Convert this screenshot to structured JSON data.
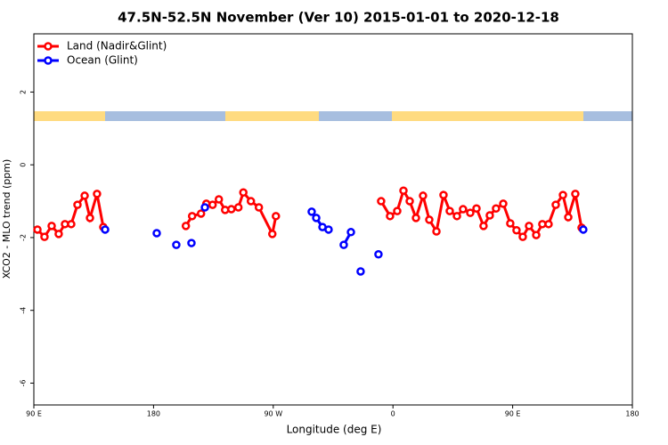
{
  "chart_data": {
    "type": "line",
    "title": "47.5N-52.5N November (Ver 10)   2015-01-01 to 2020-12-18",
    "x_label": "Longitude (deg E)",
    "y_label": "XCO2 - MLO trend (ppm)",
    "xlim": [
      90,
      540
    ],
    "ylim": [
      -6.6,
      3.6
    ],
    "xticks": [
      {
        "value": 90,
        "label": "90 E"
      },
      {
        "value": 180,
        "label": "180"
      },
      {
        "value": 270,
        "label": "90 W"
      },
      {
        "value": 360,
        "label": "0"
      },
      {
        "value": 450,
        "label": "90 E"
      },
      {
        "value": 540,
        "label": "180"
      }
    ],
    "yticks": [
      -6,
      -4,
      -2,
      0,
      2
    ],
    "legend": "top-left",
    "series": [
      {
        "name": "Land (Nadir&Glint)",
        "color": "#ff0000",
        "x": [
          92.7,
          98.0,
          103.4,
          108.7,
          113.4,
          118.1,
          122.8,
          128.2,
          132.2,
          137.5,
          142.2,
          null,
          204.3,
          209.0,
          215.7,
          219.7,
          224.4,
          229.1,
          233.8,
          238.5,
          243.8,
          247.5,
          253.2,
          259.2,
          269.3,
          272.0,
          null,
          351.1,
          357.8,
          363.2,
          367.9,
          372.6,
          377.3,
          382.6,
          387.3,
          392.7,
          398.0,
          402.7,
          408.1,
          412.7,
          418.1,
          422.8,
          428.1,
          432.8,
          437.5,
          442.9,
          448.2,
          452.9,
          457.6,
          462.3,
          467.7,
          472.3,
          477.0,
          482.4,
          487.8,
          491.8,
          497.1,
          501.8
        ],
        "values": [
          -1.78,
          -1.98,
          -1.68,
          -1.9,
          -1.63,
          -1.63,
          -1.1,
          -0.85,
          -1.46,
          -0.8,
          -1.71,
          null,
          -1.68,
          -1.41,
          -1.34,
          -1.07,
          -1.1,
          -0.95,
          -1.24,
          -1.22,
          -1.17,
          -0.76,
          -1.0,
          -1.17,
          -1.9,
          -1.41,
          null,
          -1.0,
          -1.41,
          -1.27,
          -0.71,
          -1.0,
          -1.46,
          -0.85,
          -1.51,
          -1.83,
          -0.83,
          -1.27,
          -1.41,
          -1.22,
          -1.32,
          -1.2,
          -1.68,
          -1.39,
          -1.2,
          -1.07,
          -1.61,
          -1.8,
          -1.98,
          -1.68,
          -1.93,
          -1.63,
          -1.63,
          -1.1,
          -0.83,
          -1.44,
          -0.8,
          -1.73
        ]
      },
      {
        "name": "Ocean (Glint)",
        "color": "#0000ff",
        "x": [
          143.6,
          null,
          182.4,
          null,
          197.1,
          null,
          208.5,
          null,
          218.6,
          null,
          298.9,
          302.3,
          307.0,
          311.6,
          null,
          323.0,
          328.4,
          null,
          335.7,
          null,
          349.1,
          null,
          503.1
        ],
        "values": [
          -1.78,
          null,
          -1.88,
          null,
          -2.2,
          null,
          -2.15,
          null,
          -1.17,
          null,
          -1.29,
          -1.46,
          -1.71,
          -1.78,
          null,
          -2.2,
          -1.85,
          null,
          -2.93,
          null,
          -2.46,
          null,
          -1.78
        ]
      }
    ]
  }
}
